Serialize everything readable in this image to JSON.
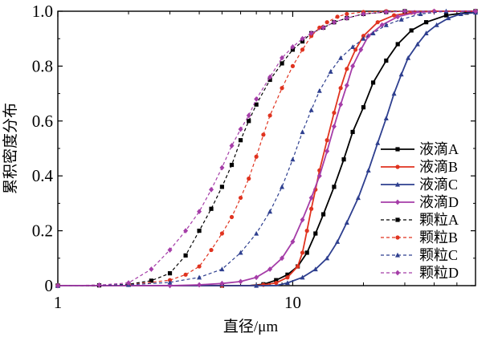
{
  "chart_data": {
    "type": "line",
    "xlabel": "直径/μm",
    "ylabel": "累积密度分布",
    "xscale": "log",
    "xlim": [
      1,
      60
    ],
    "ylim": [
      0,
      1.0
    ],
    "x_ticks": [
      "1",
      "10"
    ],
    "y_ticks": [
      "0",
      "0.2",
      "0.4",
      "0.6",
      "0.8",
      "1.0"
    ],
    "grid": false,
    "legend_position": "right",
    "series": [
      {
        "name": "液滴A",
        "color": "#000000",
        "dash": "solid",
        "marker": "square",
        "points": [
          [
            1,
            0
          ],
          [
            5,
            0
          ],
          [
            6.5,
            0
          ],
          [
            7.5,
            0.005
          ],
          [
            8.5,
            0.02
          ],
          [
            9.5,
            0.04
          ],
          [
            10.5,
            0.07
          ],
          [
            11.5,
            0.12
          ],
          [
            12.5,
            0.19
          ],
          [
            13.5,
            0.26
          ],
          [
            15,
            0.36
          ],
          [
            16.5,
            0.46
          ],
          [
            18,
            0.56
          ],
          [
            20,
            0.65
          ],
          [
            22,
            0.74
          ],
          [
            25,
            0.82
          ],
          [
            28,
            0.88
          ],
          [
            32,
            0.93
          ],
          [
            37,
            0.96
          ],
          [
            45,
            0.985
          ],
          [
            55,
            0.995
          ],
          [
            60,
            1.0
          ]
        ]
      },
      {
        "name": "液滴B",
        "color": "#e0331f",
        "dash": "solid",
        "marker": "circle",
        "points": [
          [
            1,
            0
          ],
          [
            5,
            0
          ],
          [
            6.5,
            0
          ],
          [
            7.5,
            0.003
          ],
          [
            8.5,
            0.01
          ],
          [
            9.5,
            0.03
          ],
          [
            10.5,
            0.07
          ],
          [
            11,
            0.12
          ],
          [
            11.5,
            0.2
          ],
          [
            12,
            0.28
          ],
          [
            12.5,
            0.35
          ],
          [
            13,
            0.42
          ],
          [
            14,
            0.53
          ],
          [
            15,
            0.63
          ],
          [
            16,
            0.72
          ],
          [
            17,
            0.79
          ],
          [
            18.5,
            0.86
          ],
          [
            20,
            0.91
          ],
          [
            23,
            0.96
          ],
          [
            27,
            0.985
          ],
          [
            32,
            0.995
          ],
          [
            40,
            1.0
          ],
          [
            60,
            1.0
          ]
        ]
      },
      {
        "name": "液滴C",
        "color": "#2e3f8f",
        "dash": "solid",
        "marker": "triangle",
        "points": [
          [
            1,
            0
          ],
          [
            7,
            0
          ],
          [
            8.5,
            0
          ],
          [
            9.5,
            0.01
          ],
          [
            11,
            0.03
          ],
          [
            12.5,
            0.06
          ],
          [
            14,
            0.1
          ],
          [
            15.5,
            0.16
          ],
          [
            17,
            0.23
          ],
          [
            19,
            0.32
          ],
          [
            21,
            0.42
          ],
          [
            23,
            0.52
          ],
          [
            25,
            0.61
          ],
          [
            27,
            0.7
          ],
          [
            29,
            0.77
          ],
          [
            31,
            0.83
          ],
          [
            34,
            0.88
          ],
          [
            37,
            0.92
          ],
          [
            41,
            0.95
          ],
          [
            46,
            0.975
          ],
          [
            52,
            0.99
          ],
          [
            60,
            0.995
          ]
        ]
      },
      {
        "name": "液滴D",
        "color": "#a53da8",
        "dash": "solid",
        "marker": "diamond",
        "points": [
          [
            1,
            0
          ],
          [
            3,
            0
          ],
          [
            4,
            0.003
          ],
          [
            5,
            0.008
          ],
          [
            6,
            0.015
          ],
          [
            7,
            0.03
          ],
          [
            8,
            0.06
          ],
          [
            9,
            0.1
          ],
          [
            10,
            0.16
          ],
          [
            11,
            0.24
          ],
          [
            12,
            0.32
          ],
          [
            13,
            0.4
          ],
          [
            14,
            0.49
          ],
          [
            15,
            0.58
          ],
          [
            16,
            0.66
          ],
          [
            17,
            0.73
          ],
          [
            18,
            0.8
          ],
          [
            19.5,
            0.86
          ],
          [
            21,
            0.91
          ],
          [
            24,
            0.95
          ],
          [
            28,
            0.98
          ],
          [
            33,
            0.995
          ],
          [
            40,
            1.0
          ],
          [
            60,
            1.0
          ]
        ]
      },
      {
        "name": "颗粒A",
        "color": "#000000",
        "dash": "dashed",
        "marker": "square",
        "points": [
          [
            1,
            0
          ],
          [
            1.5,
            0.001
          ],
          [
            2,
            0.005
          ],
          [
            2.5,
            0.018
          ],
          [
            3,
            0.045
          ],
          [
            3.5,
            0.11
          ],
          [
            4,
            0.2
          ],
          [
            4.5,
            0.28
          ],
          [
            5,
            0.36
          ],
          [
            5.5,
            0.44
          ],
          [
            6,
            0.53
          ],
          [
            6.5,
            0.6
          ],
          [
            7,
            0.66
          ],
          [
            8,
            0.75
          ],
          [
            9,
            0.81
          ],
          [
            10,
            0.86
          ],
          [
            11,
            0.89
          ],
          [
            12,
            0.92
          ],
          [
            13.5,
            0.94
          ],
          [
            15,
            0.96
          ],
          [
            17,
            0.975
          ],
          [
            20,
            0.99
          ],
          [
            25,
            0.997
          ],
          [
            30,
            1.0
          ],
          [
            60,
            1.0
          ]
        ]
      },
      {
        "name": "颗粒B",
        "color": "#e0331f",
        "dash": "dashed",
        "marker": "circle",
        "points": [
          [
            1,
            0
          ],
          [
            2,
            0.003
          ],
          [
            3,
            0.02
          ],
          [
            3.5,
            0.04
          ],
          [
            4,
            0.07
          ],
          [
            4.5,
            0.13
          ],
          [
            5,
            0.19
          ],
          [
            5.5,
            0.25
          ],
          [
            6,
            0.32
          ],
          [
            6.5,
            0.39
          ],
          [
            7,
            0.47
          ],
          [
            7.5,
            0.55
          ],
          [
            8,
            0.62
          ],
          [
            9,
            0.72
          ],
          [
            10,
            0.8
          ],
          [
            11,
            0.86
          ],
          [
            12,
            0.91
          ],
          [
            13,
            0.94
          ],
          [
            14,
            0.96
          ],
          [
            15.5,
            0.98
          ],
          [
            17,
            0.99
          ],
          [
            20,
            0.997
          ],
          [
            25,
            1.0
          ],
          [
            60,
            1.0
          ]
        ]
      },
      {
        "name": "颗粒C",
        "color": "#2e3f8f",
        "dash": "dashed",
        "marker": "triangle",
        "points": [
          [
            1,
            0
          ],
          [
            2,
            0.003
          ],
          [
            3,
            0.012
          ],
          [
            4,
            0.03
          ],
          [
            5,
            0.06
          ],
          [
            6,
            0.12
          ],
          [
            7,
            0.19
          ],
          [
            8,
            0.27
          ],
          [
            9,
            0.36
          ],
          [
            10,
            0.46
          ],
          [
            11,
            0.56
          ],
          [
            12,
            0.64
          ],
          [
            13,
            0.71
          ],
          [
            14.5,
            0.78
          ],
          [
            16,
            0.83
          ],
          [
            18,
            0.87
          ],
          [
            20,
            0.9
          ],
          [
            22,
            0.92
          ],
          [
            25,
            0.95
          ],
          [
            29,
            0.97
          ],
          [
            35,
            0.99
          ],
          [
            45,
            1.0
          ],
          [
            60,
            1.0
          ]
        ]
      },
      {
        "name": "颗粒D",
        "color": "#a53da8",
        "dash": "dashed",
        "marker": "diamond",
        "points": [
          [
            1,
            0
          ],
          [
            1.5,
            0.002
          ],
          [
            2,
            0.01
          ],
          [
            2.5,
            0.06
          ],
          [
            3,
            0.13
          ],
          [
            3.5,
            0.2
          ],
          [
            4,
            0.27
          ],
          [
            4.5,
            0.35
          ],
          [
            5,
            0.43
          ],
          [
            5.5,
            0.51
          ],
          [
            6,
            0.57
          ],
          [
            6.5,
            0.62
          ],
          [
            7,
            0.68
          ],
          [
            8,
            0.76
          ],
          [
            9,
            0.83
          ],
          [
            10,
            0.87
          ],
          [
            11,
            0.9
          ],
          [
            12,
            0.92
          ],
          [
            13.5,
            0.94
          ],
          [
            15,
            0.96
          ],
          [
            17,
            0.975
          ],
          [
            20,
            0.99
          ],
          [
            25,
            0.997
          ],
          [
            30,
            1.0
          ],
          [
            60,
            1.0
          ]
        ]
      }
    ]
  }
}
